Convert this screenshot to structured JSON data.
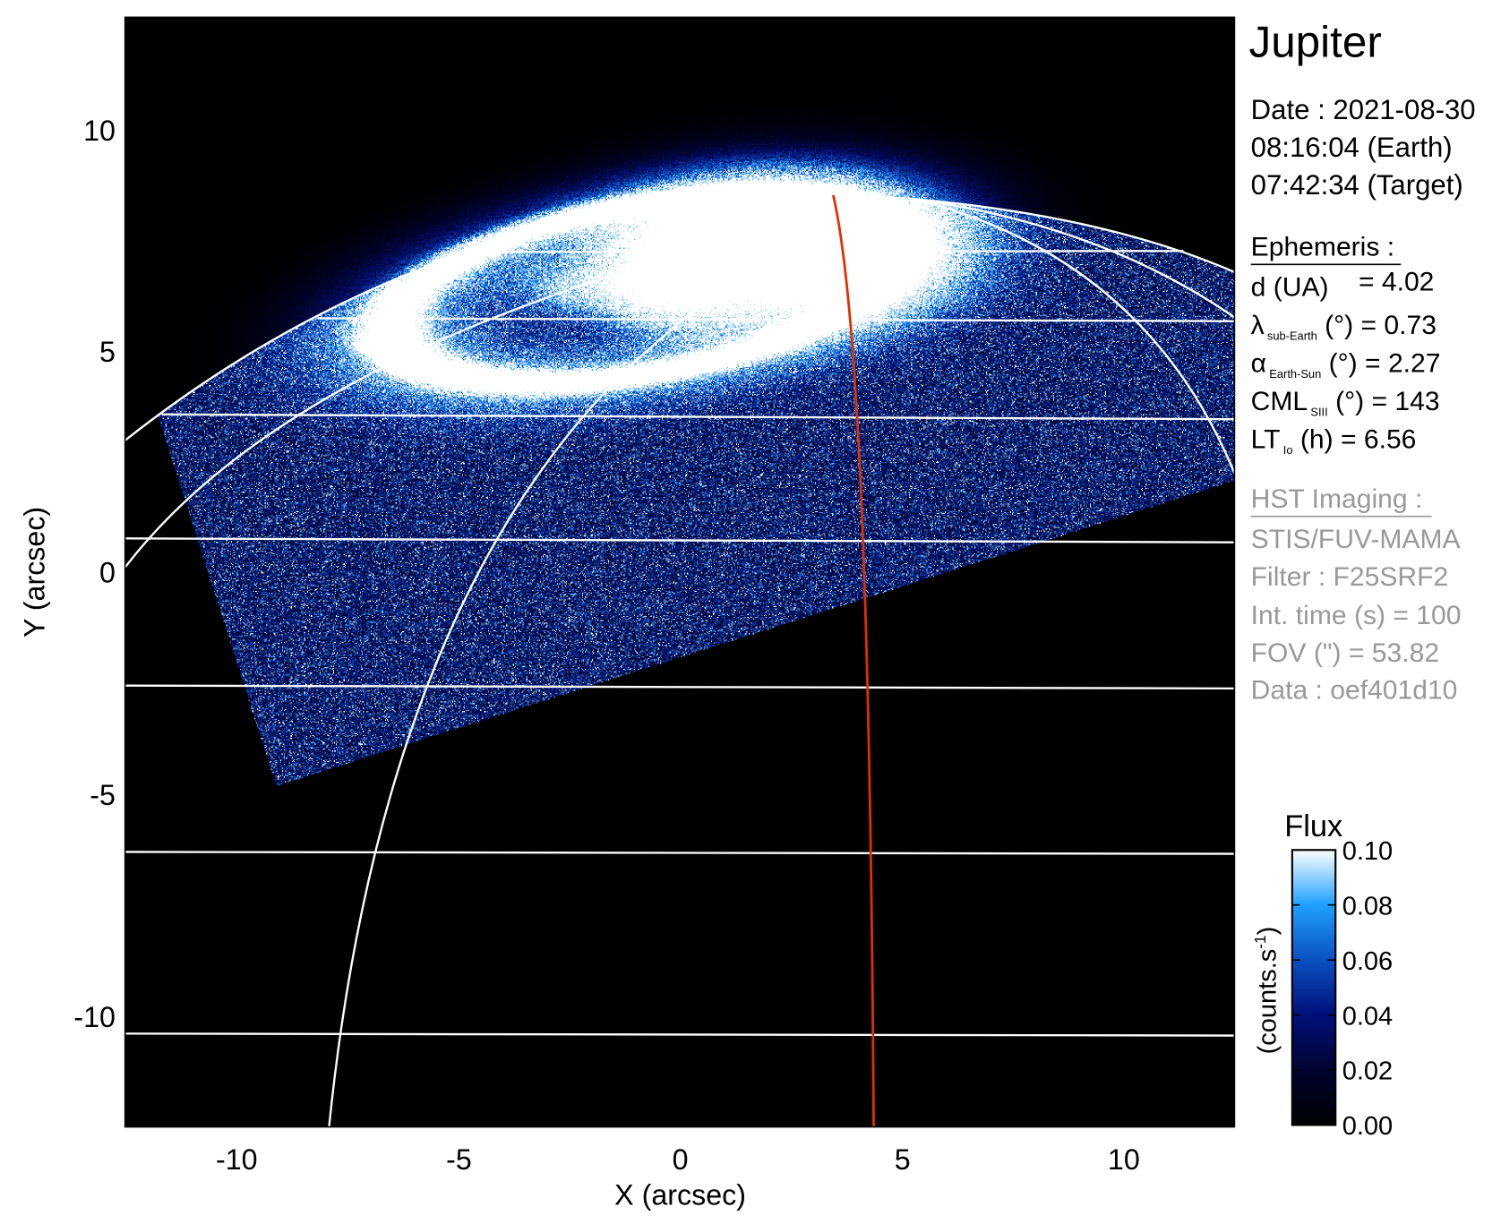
{
  "panel": {
    "title": "Jupiter",
    "date_lines": [
      "Date : 2021-08-30",
      "08:16:04 (Earth)",
      "07:42:34 (Target)"
    ],
    "ephemeris": {
      "heading": "Ephemeris :",
      "rows": [
        {
          "sym": "d (UA)",
          "sub": "",
          "rest": "    = 4.02"
        },
        {
          "sym": "λ",
          "sub": "sub-Earth",
          "rest": " (°) = 0.73"
        },
        {
          "sym": "α",
          "sub": "Earth-Sun",
          "rest": " (°) = 2.27"
        },
        {
          "sym": "CML",
          "sub": "SIII",
          "rest": " (°) = 143"
        },
        {
          "sym": "LT",
          "sub": "Io",
          "rest": " (h) = 6.56"
        }
      ]
    },
    "imaging": {
      "heading": "HST Imaging :",
      "rows": [
        "STIS/FUV-MAMA",
        "Filter : F25SRF2",
        "Int. time (s) = 100",
        "FOV (\") = 53.82",
        "Data : oef401d10"
      ]
    },
    "imaging_color": "#999999"
  },
  "chart_data": {
    "type": "heatmap",
    "xlabel": "X (arcsec)",
    "ylabel": "Y (arcsec)",
    "xlim": [
      -12.5,
      12.5
    ],
    "ylim": [
      -12.5,
      12.5
    ],
    "xticks": [
      "-10",
      "-5",
      "0",
      "5",
      "10"
    ],
    "xtick_values": [
      -10,
      -5,
      0,
      5,
      10
    ],
    "yticks": [
      "10",
      "5",
      "0",
      "-5",
      "-10"
    ],
    "ytick_values": [
      10,
      5,
      0,
      -5,
      -10
    ],
    "grid": "planetographic latitude/longitude grid (white)",
    "overlay_line_color": "#e03000",
    "grid_color": "#ffffff",
    "colorbar": {
      "title": "Flux",
      "label": "(counts.s-1)",
      "label_base": "(counts.s",
      "label_sup": "-1",
      "label_end": ")",
      "range": [
        0.0,
        0.1
      ],
      "ticks": [
        "0.10",
        "0.08",
        "0.06",
        "0.04",
        "0.02",
        "0.00"
      ],
      "tick_values": [
        0.1,
        0.08,
        0.06,
        0.04,
        0.02,
        0.0
      ],
      "colors": [
        "#000000",
        "#000330",
        "#00107a",
        "#0a50c0",
        "#1ea0ff",
        "#ffffff"
      ]
    }
  }
}
